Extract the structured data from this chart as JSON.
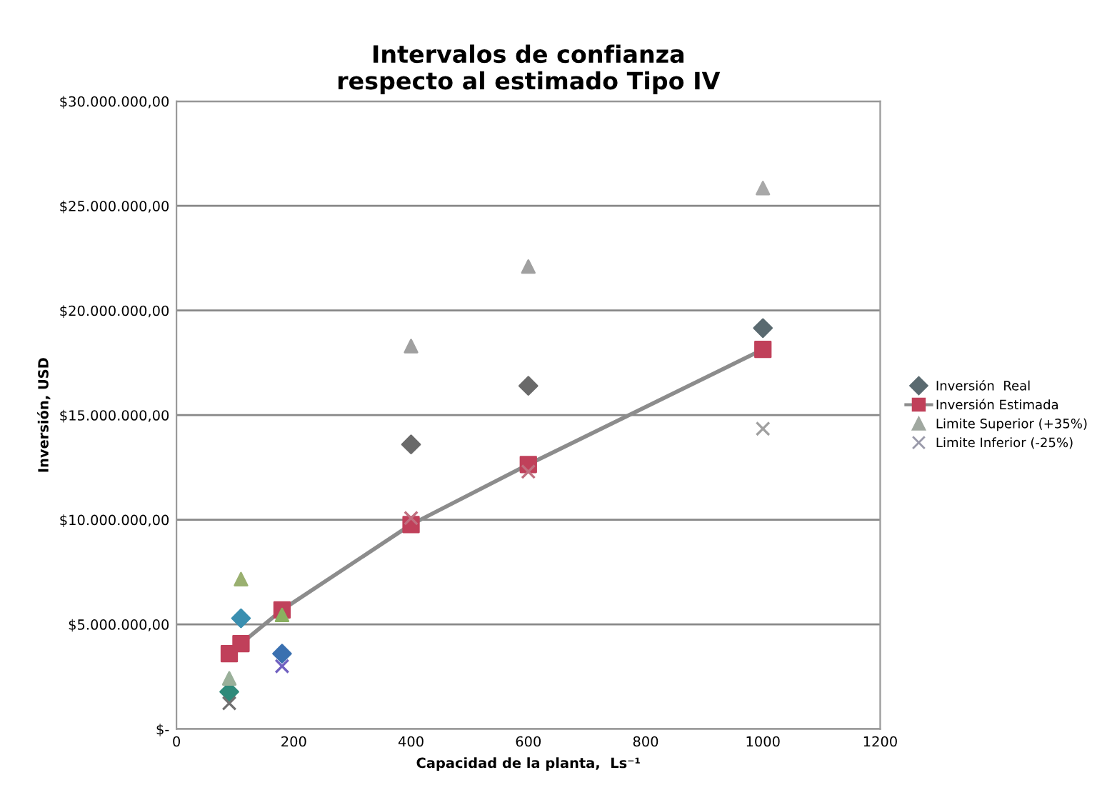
{
  "chart_data": {
    "type": "scatter",
    "title": "Intervalos de confianza\nrespecto al estimado Tipo IV",
    "xlabel": "Capacidad de la planta,  Ls⁻¹",
    "ylabel": "Inversión, USD",
    "x": [
      90,
      110,
      180,
      400,
      600,
      1000
    ],
    "series": [
      {
        "name": "Inversión  Real",
        "marker": "diamond",
        "color": "#5a6a70",
        "colors": [
          "#2f8a7a",
          "#3a8fb0",
          "#3a70b0",
          "#6a6a6a",
          "#6a6a6a",
          "#5a6a70"
        ],
        "values": [
          1780000.0,
          5290000.0,
          3600000.0,
          13600000.0,
          16400000.0,
          19160000.0
        ]
      },
      {
        "name": "Inversión Estimada",
        "type": "line",
        "marker": "square",
        "color": "#c0405a",
        "values": [
          3600000.0,
          4080000.0,
          5690000.0,
          9770000.0,
          12640000.0,
          18140000.0
        ]
      },
      {
        "name": "Limite Superior (+35%)",
        "marker": "triangle",
        "color": "#a0a8a0",
        "colors": [
          "#9ab09a",
          "#9ab070",
          "#8ab060",
          "#a0a0a0",
          "#a0a0a0",
          "#a8a8a8"
        ],
        "values": [
          2420000.0,
          7160000.0,
          5450000.0,
          18300000.0,
          22100000.0,
          25850000.0
        ]
      },
      {
        "name": "Limite Inferior (-25%)",
        "marker": "cross",
        "color": "#9a9aaa",
        "colors": [
          "#707070",
          "#8a70c0",
          "#7060c0",
          "#c07080",
          "#c07080",
          "#a0a0a0"
        ],
        "values": [
          1230000.0,
          null,
          3000000.0,
          10080000.0,
          12300000.0,
          14350000.0
        ]
      }
    ],
    "xlim": [
      0,
      1200
    ],
    "xticks": [
      0,
      200,
      400,
      600,
      800,
      1000,
      1200
    ],
    "ylim": [
      0,
      30000000
    ],
    "yticks": [
      {
        "value": 0,
        "label": "$-"
      },
      {
        "value": 5000000,
        "label": "$5.000.000,00"
      },
      {
        "value": 10000000,
        "label": "$10.000.000,00"
      },
      {
        "value": 15000000,
        "label": "$15.000.000,00"
      },
      {
        "value": 20000000,
        "label": "$20.000.000,00"
      },
      {
        "value": 25000000,
        "label": "$25.000.000,00"
      },
      {
        "value": 30000000,
        "label": "$30.000.000,00"
      }
    ],
    "grid": "y",
    "legend": "right"
  }
}
